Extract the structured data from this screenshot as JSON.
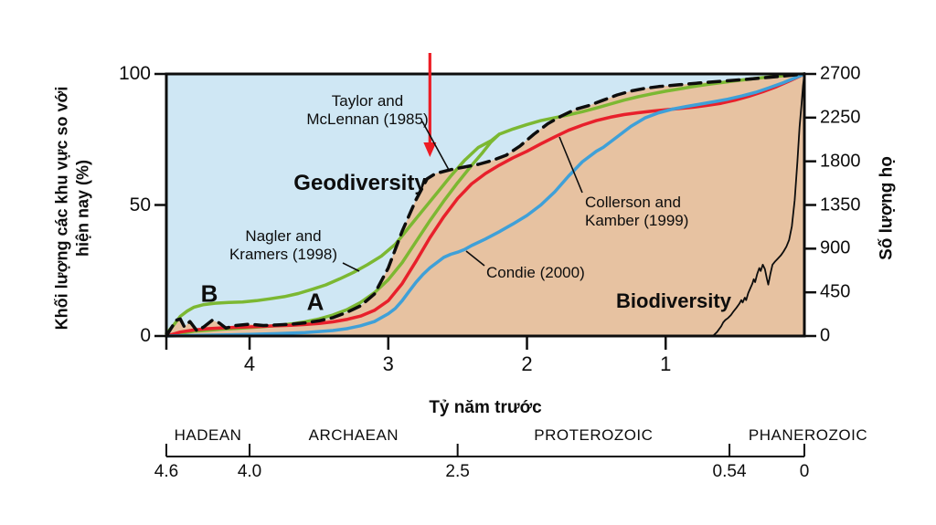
{
  "figure": {
    "y_left_axis_title_line1": "Khối lượng các khu vực so với",
    "y_left_axis_title_line2": "hiện nay (%)",
    "y_right_axis_title": "Số lượng họ",
    "x_axis_title": "Tỷ năm trước",
    "area_labels": {
      "geodiversity": "Geodiversity",
      "biodiversity": "Biodiversity"
    },
    "curve_labels": {
      "taylor_line1": "Taylor and",
      "taylor_line2": "McLennan (1985)",
      "nagler_line1": "Nagler and",
      "nagler_line2": "Kramers (1998)",
      "collerson_line1": "Collerson and",
      "collerson_line2": "Kamber (1999)",
      "condie": "Condie (2000)",
      "branch_b": "B",
      "branch_a": "A"
    },
    "colors": {
      "plot_background": "#cfe7f4",
      "area_fill": "#e7c2a1",
      "green_line": "#7cb832",
      "red_line": "#e8202b",
      "blue_line": "#3fa0d8",
      "black_line": "#0d0d0d",
      "arrow_red": "#ed1c24"
    }
  },
  "chart_data": {
    "type": "area",
    "title": "",
    "x_axis": {
      "label": "Tỷ năm trước",
      "unit": "billion years ago",
      "range": [
        4.6,
        0
      ],
      "ticks": [
        {
          "t": 4,
          "label": "4"
        },
        {
          "t": 3,
          "label": "3"
        },
        {
          "t": 2,
          "label": "2"
        },
        {
          "t": 1,
          "label": "1"
        }
      ],
      "edge_tick": 4.6
    },
    "y_left": {
      "label": "Khối lượng các khu vực so với hiện nay (%)",
      "range": [
        0,
        100
      ],
      "ticks": [
        {
          "v": 100,
          "label": "100"
        },
        {
          "v": 50,
          "label": "50"
        },
        {
          "v": 0,
          "label": "0"
        }
      ]
    },
    "y_right": {
      "label": "Số lượng họ",
      "range": [
        0,
        2700
      ],
      "ticks": [
        {
          "v": 2700,
          "label": "2700"
        },
        {
          "v": 2250,
          "label": "2250"
        },
        {
          "v": 1800,
          "label": "1800"
        },
        {
          "v": 1350,
          "label": "1350"
        },
        {
          "v": 900,
          "label": "900"
        },
        {
          "v": 450,
          "label": "450"
        },
        {
          "v": 0,
          "label": "0"
        }
      ]
    },
    "series": [
      {
        "name": "Taylor and McLennan (1985)",
        "style": "dashed",
        "color": "#0d0d0d",
        "axis": "left",
        "filled": true,
        "points": [
          [
            4.6,
            0
          ],
          [
            4.53,
            6
          ],
          [
            4.5,
            6.5
          ],
          [
            4.47,
            3.5
          ],
          [
            4.43,
            5.5
          ],
          [
            4.38,
            2
          ],
          [
            4.33,
            3.5
          ],
          [
            4.27,
            6
          ],
          [
            4.22,
            5
          ],
          [
            4.17,
            3
          ],
          [
            4.1,
            4
          ],
          [
            4.0,
            4.5
          ],
          [
            3.9,
            4
          ],
          [
            3.8,
            4.2
          ],
          [
            3.7,
            4.5
          ],
          [
            3.6,
            5
          ],
          [
            3.5,
            5.8
          ],
          [
            3.4,
            7
          ],
          [
            3.3,
            9
          ],
          [
            3.2,
            11.5
          ],
          [
            3.1,
            16
          ],
          [
            3.0,
            26
          ],
          [
            2.9,
            40
          ],
          [
            2.8,
            52
          ],
          [
            2.72,
            60
          ],
          [
            2.66,
            62
          ],
          [
            2.55,
            63.5
          ],
          [
            2.45,
            64.5
          ],
          [
            2.35,
            65.5
          ],
          [
            2.25,
            67
          ],
          [
            2.15,
            69
          ],
          [
            2.05,
            72.5
          ],
          [
            1.95,
            77
          ],
          [
            1.85,
            81
          ],
          [
            1.75,
            84
          ],
          [
            1.65,
            86.5
          ],
          [
            1.55,
            88
          ],
          [
            1.45,
            90
          ],
          [
            1.35,
            92
          ],
          [
            1.25,
            93.5
          ],
          [
            1.15,
            94.5
          ],
          [
            1.05,
            95.2
          ],
          [
            0.9,
            95.9
          ],
          [
            0.75,
            96.6
          ],
          [
            0.6,
            97.2
          ],
          [
            0.45,
            97.8
          ],
          [
            0.3,
            98.5
          ],
          [
            0.15,
            99.2
          ],
          [
            0,
            100
          ]
        ]
      },
      {
        "name": "Nagler and Kramers (1998) branch B",
        "style": "solid",
        "color": "#7cb832",
        "axis": "left",
        "points": [
          [
            4.6,
            1
          ],
          [
            4.55,
            4
          ],
          [
            4.5,
            7.5
          ],
          [
            4.45,
            9.5
          ],
          [
            4.4,
            11
          ],
          [
            4.33,
            12
          ],
          [
            4.25,
            12.5
          ],
          [
            4.15,
            12.8
          ],
          [
            4.05,
            13
          ],
          [
            3.95,
            13.5
          ],
          [
            3.85,
            14.2
          ],
          [
            3.75,
            15
          ],
          [
            3.65,
            16.2
          ],
          [
            3.55,
            17.8
          ],
          [
            3.45,
            19.5
          ],
          [
            3.35,
            21.8
          ],
          [
            3.25,
            24.3
          ],
          [
            3.15,
            27.2
          ],
          [
            3.05,
            30.5
          ],
          [
            2.95,
            35
          ],
          [
            2.85,
            41.5
          ],
          [
            2.75,
            48
          ],
          [
            2.65,
            54.5
          ],
          [
            2.55,
            61
          ],
          [
            2.45,
            67
          ],
          [
            2.35,
            72
          ],
          [
            2.26,
            74.5
          ],
          [
            2.2,
            77
          ],
          [
            2.1,
            79
          ],
          [
            2.0,
            80.7
          ],
          [
            1.9,
            82.2
          ],
          [
            1.8,
            83.3
          ],
          [
            1.7,
            84.4
          ],
          [
            1.6,
            85.6
          ],
          [
            1.5,
            87
          ],
          [
            1.4,
            88.5
          ],
          [
            1.3,
            90
          ],
          [
            1.2,
            91.3
          ],
          [
            1.1,
            92.4
          ],
          [
            1.0,
            93.4
          ],
          [
            0.9,
            94.3
          ],
          [
            0.8,
            95.2
          ],
          [
            0.7,
            96
          ],
          [
            0.6,
            96.7
          ],
          [
            0.5,
            97.4
          ],
          [
            0.4,
            98
          ],
          [
            0.3,
            98.6
          ],
          [
            0.2,
            99.1
          ],
          [
            0.1,
            99.6
          ],
          [
            0,
            100
          ]
        ]
      },
      {
        "name": "Nagler and Kramers (1998) branch A",
        "style": "solid",
        "color": "#7cb832",
        "axis": "left",
        "points": [
          [
            4.6,
            0
          ],
          [
            4.5,
            1
          ],
          [
            4.4,
            1.8
          ],
          [
            4.3,
            2.2
          ],
          [
            4.2,
            2.6
          ],
          [
            4.1,
            2.9
          ],
          [
            4.0,
            3.2
          ],
          [
            3.9,
            3.6
          ],
          [
            3.8,
            4
          ],
          [
            3.7,
            4.6
          ],
          [
            3.6,
            5.4
          ],
          [
            3.5,
            6.5
          ],
          [
            3.4,
            8
          ],
          [
            3.3,
            10
          ],
          [
            3.2,
            12.8
          ],
          [
            3.1,
            16.5
          ],
          [
            3.0,
            21.5
          ],
          [
            2.9,
            28
          ],
          [
            2.8,
            36
          ],
          [
            2.7,
            44
          ],
          [
            2.6,
            51.5
          ],
          [
            2.5,
            58.5
          ],
          [
            2.4,
            65
          ],
          [
            2.32,
            70
          ],
          [
            2.26,
            74
          ],
          [
            2.2,
            77
          ]
        ]
      },
      {
        "name": "Collerson and Kamber (1999)",
        "style": "solid",
        "color": "#e8202b",
        "axis": "left",
        "points": [
          [
            4.6,
            0
          ],
          [
            4.5,
            1.5
          ],
          [
            4.4,
            2.3
          ],
          [
            4.3,
            2.8
          ],
          [
            4.2,
            3.1
          ],
          [
            4.1,
            3.3
          ],
          [
            4.0,
            3.5
          ],
          [
            3.9,
            3.7
          ],
          [
            3.8,
            3.9
          ],
          [
            3.7,
            4.1
          ],
          [
            3.6,
            4.4
          ],
          [
            3.5,
            4.8
          ],
          [
            3.4,
            5.4
          ],
          [
            3.3,
            6.3
          ],
          [
            3.2,
            7.6
          ],
          [
            3.1,
            9.8
          ],
          [
            3.0,
            13.5
          ],
          [
            2.9,
            20
          ],
          [
            2.8,
            28.5
          ],
          [
            2.7,
            37.5
          ],
          [
            2.6,
            45.5
          ],
          [
            2.5,
            52.5
          ],
          [
            2.4,
            58
          ],
          [
            2.3,
            62
          ],
          [
            2.2,
            65.2
          ],
          [
            2.1,
            68
          ],
          [
            2.0,
            70.5
          ],
          [
            1.9,
            73.3
          ],
          [
            1.8,
            76
          ],
          [
            1.7,
            78.5
          ],
          [
            1.6,
            80.5
          ],
          [
            1.5,
            82.2
          ],
          [
            1.4,
            83.5
          ],
          [
            1.3,
            84.5
          ],
          [
            1.2,
            85.2
          ],
          [
            1.1,
            85.8
          ],
          [
            1.0,
            86.3
          ],
          [
            0.9,
            86.8
          ],
          [
            0.8,
            87.3
          ],
          [
            0.7,
            88
          ],
          [
            0.6,
            88.8
          ],
          [
            0.5,
            90
          ],
          [
            0.4,
            91.5
          ],
          [
            0.3,
            93.2
          ],
          [
            0.2,
            95.2
          ],
          [
            0.1,
            97.5
          ],
          [
            0,
            100
          ]
        ]
      },
      {
        "name": "Condie (2000)",
        "style": "solid",
        "color": "#3fa0d8",
        "axis": "left",
        "points": [
          [
            4.6,
            0
          ],
          [
            4.3,
            0.3
          ],
          [
            4.0,
            0.6
          ],
          [
            3.8,
            0.9
          ],
          [
            3.6,
            1.3
          ],
          [
            3.4,
            2.1
          ],
          [
            3.3,
            2.8
          ],
          [
            3.2,
            3.9
          ],
          [
            3.1,
            5.5
          ],
          [
            3.0,
            8.5
          ],
          [
            2.95,
            10.5
          ],
          [
            2.9,
            13.5
          ],
          [
            2.85,
            17
          ],
          [
            2.8,
            20.5
          ],
          [
            2.75,
            23.5
          ],
          [
            2.7,
            26
          ],
          [
            2.65,
            28
          ],
          [
            2.6,
            30
          ],
          [
            2.55,
            31.2
          ],
          [
            2.5,
            32
          ],
          [
            2.45,
            33
          ],
          [
            2.4,
            34.5
          ],
          [
            2.3,
            37
          ],
          [
            2.2,
            39.8
          ],
          [
            2.1,
            42.8
          ],
          [
            2.0,
            46
          ],
          [
            1.9,
            50
          ],
          [
            1.8,
            55
          ],
          [
            1.7,
            61
          ],
          [
            1.6,
            66.5
          ],
          [
            1.5,
            70.5
          ],
          [
            1.45,
            72
          ],
          [
            1.35,
            76
          ],
          [
            1.25,
            80
          ],
          [
            1.15,
            83.2
          ],
          [
            1.05,
            85.2
          ],
          [
            0.95,
            86.6
          ],
          [
            0.85,
            87.6
          ],
          [
            0.75,
            88.5
          ],
          [
            0.65,
            89.4
          ],
          [
            0.55,
            90.4
          ],
          [
            0.45,
            91.6
          ],
          [
            0.35,
            93
          ],
          [
            0.25,
            94.8
          ],
          [
            0.15,
            96.7
          ],
          [
            0.05,
            98.9
          ],
          [
            0,
            100
          ]
        ]
      },
      {
        "name": "Biodiversity (number of families)",
        "style": "thin",
        "color": "#0d0d0d",
        "axis": "right",
        "points": [
          [
            1.5,
            0
          ],
          [
            0.8,
            0
          ],
          [
            0.66,
            0
          ],
          [
            0.63,
            40
          ],
          [
            0.6,
            100
          ],
          [
            0.585,
            140
          ],
          [
            0.57,
            165
          ],
          [
            0.55,
            185
          ],
          [
            0.53,
            215
          ],
          [
            0.51,
            255
          ],
          [
            0.49,
            290
          ],
          [
            0.47,
            330
          ],
          [
            0.455,
            370
          ],
          [
            0.445,
            345
          ],
          [
            0.43,
            395
          ],
          [
            0.42,
            370
          ],
          [
            0.405,
            440
          ],
          [
            0.39,
            490
          ],
          [
            0.375,
            540
          ],
          [
            0.365,
            585
          ],
          [
            0.355,
            555
          ],
          [
            0.34,
            640
          ],
          [
            0.325,
            700
          ],
          [
            0.315,
            670
          ],
          [
            0.3,
            735
          ],
          [
            0.285,
            690
          ],
          [
            0.27,
            590
          ],
          [
            0.26,
            530
          ],
          [
            0.245,
            640
          ],
          [
            0.23,
            735
          ],
          [
            0.21,
            770
          ],
          [
            0.19,
            800
          ],
          [
            0.17,
            830
          ],
          [
            0.15,
            870
          ],
          [
            0.13,
            920
          ],
          [
            0.11,
            990
          ],
          [
            0.09,
            1130
          ],
          [
            0.07,
            1400
          ],
          [
            0.05,
            1800
          ],
          [
            0.035,
            2150
          ],
          [
            0.02,
            2400
          ],
          [
            0.01,
            2580
          ],
          [
            0,
            2700
          ]
        ]
      }
    ],
    "eons": [
      {
        "name": "HADEAN",
        "from": 4.6,
        "to": 4.0
      },
      {
        "name": "ARCHAEAN",
        "from": 4.0,
        "to": 2.5
      },
      {
        "name": "PROTEROZOIC",
        "from": 2.5,
        "to": 0.54
      },
      {
        "name": "PHANEROZOIC",
        "from": 0.54,
        "to": 0
      }
    ],
    "eon_boundaries": [
      {
        "t": 4.6,
        "label": "4.6"
      },
      {
        "t": 4.0,
        "label": "4.0"
      },
      {
        "t": 2.5,
        "label": "2.5"
      },
      {
        "t": 0.54,
        "label": "0.54"
      },
      {
        "t": 0,
        "label": "0"
      }
    ],
    "annotations": {
      "red_arrow_t": 2.7
    },
    "layout_hints": {
      "grid": false,
      "legend": "inline labels with leader lines",
      "x_direction": "reversed (4.6 Ga at left, 0 at right)"
    }
  }
}
